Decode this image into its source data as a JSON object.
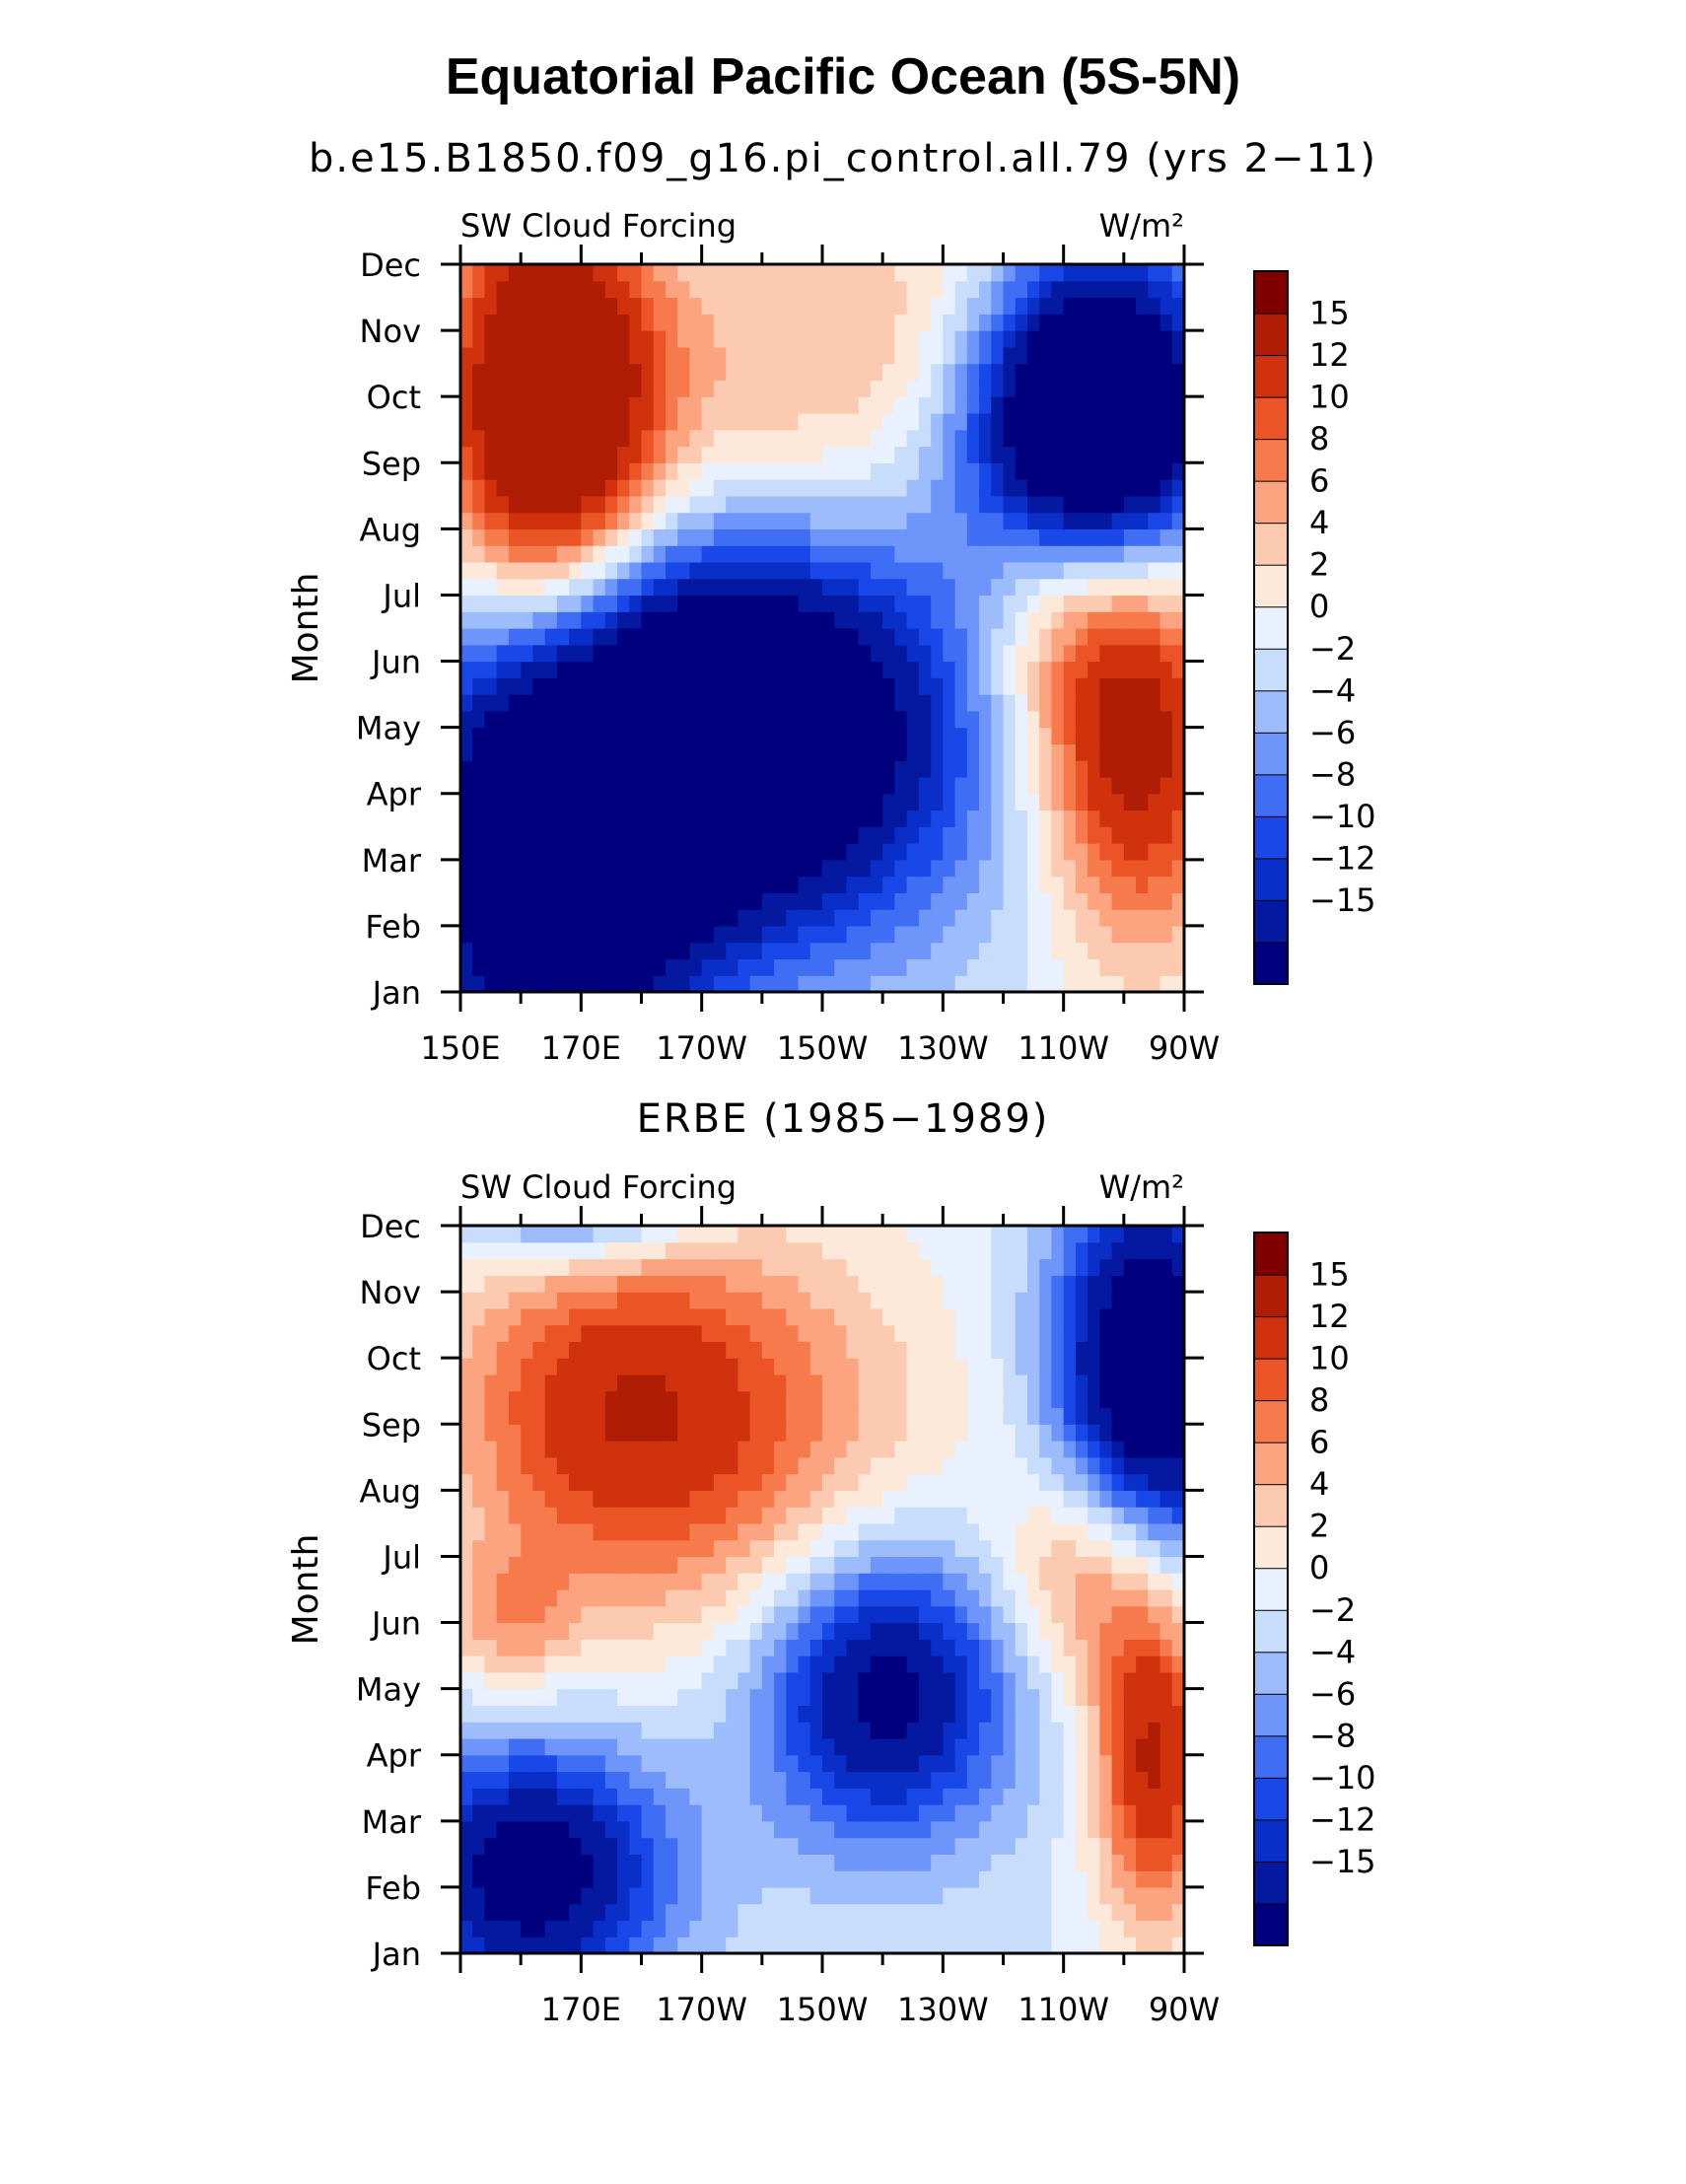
{
  "title": "Equatorial Pacific Ocean (5S-5N)",
  "chart_data": [
    {
      "type": "heatmap",
      "title": "b.e15.B1850.f09_g16.pi_control.all.79 (yrs 2−11)",
      "left_label": "SW Cloud Forcing",
      "units_label": "W/m²",
      "ylabel": "Month",
      "xlabel": "",
      "x_range": [
        150,
        270
      ],
      "x_tick_values": [
        150,
        170,
        190,
        210,
        230,
        250,
        270
      ],
      "x_ticks": [
        "150E",
        "170E",
        "170W",
        "150W",
        "130W",
        "110W",
        "90W"
      ],
      "y_ticks": [
        "Jan",
        "Feb",
        "Mar",
        "Apr",
        "May",
        "Jun",
        "Jul",
        "Aug",
        "Sep",
        "Oct",
        "Nov",
        "Dec"
      ],
      "colorbar_labels": [
        "15",
        "12",
        "10",
        "8",
        "6",
        "4",
        "2",
        "0",
        "−2",
        "−4",
        "−6",
        "−8",
        "−10",
        "−12",
        "−15"
      ],
      "field_features": [
        {
          "lon": 165,
          "month": 8.8,
          "amp": 26,
          "sx": 12,
          "sy": 2.2
        },
        {
          "lon": 200,
          "month": 8.2,
          "amp": 6,
          "sx": 22,
          "sy": 2.0
        },
        {
          "lon": 195,
          "month": 4.0,
          "amp": -28,
          "sx": 26,
          "sy": 2.2
        },
        {
          "lon": 165,
          "month": 1.5,
          "amp": -20,
          "sx": 16,
          "sy": 2.3
        },
        {
          "lon": 255,
          "month": 8.6,
          "amp": -32,
          "sx": 14,
          "sy": 1.8
        },
        {
          "lon": 262,
          "month": 4.0,
          "amp": 18,
          "sx": 11,
          "sy": 2.3
        },
        {
          "lon": 248,
          "month": 6.0,
          "amp": 8,
          "sx": 10,
          "sy": 1.6
        },
        {
          "lon": 230,
          "month": 10.5,
          "amp": 4,
          "sx": 25,
          "sy": 1.5
        }
      ]
    },
    {
      "type": "heatmap",
      "title": "ERBE (1985−1989)",
      "left_label": "SW Cloud Forcing",
      "units_label": "W/m²",
      "ylabel": "Month",
      "xlabel": "",
      "x_range": [
        150,
        270
      ],
      "x_tick_values": [
        170,
        190,
        210,
        230,
        250,
        270
      ],
      "x_ticks": [
        "170E",
        "170W",
        "150W",
        "130W",
        "110W",
        "90W"
      ],
      "y_ticks": [
        "Jan",
        "Feb",
        "Mar",
        "Apr",
        "May",
        "Jun",
        "Jul",
        "Aug",
        "Sep",
        "Oct",
        "Nov",
        "Dec"
      ],
      "colorbar_labels": [
        "15",
        "12",
        "10",
        "8",
        "6",
        "4",
        "2",
        "0",
        "−2",
        "−4",
        "−6",
        "−8",
        "−10",
        "−12",
        "−15"
      ],
      "field_features": [
        {
          "lon": 175,
          "month": 8.3,
          "amp": 13,
          "sx": 20,
          "sy": 2.0
        },
        {
          "lon": 205,
          "month": 7.5,
          "amp": 6,
          "sx": 22,
          "sy": 2.5
        },
        {
          "lon": 220,
          "month": 4.0,
          "amp": -18,
          "sx": 15,
          "sy": 1.6
        },
        {
          "lon": 162,
          "month": 1.2,
          "amp": -18,
          "sx": 16,
          "sy": 1.4
        },
        {
          "lon": 170,
          "month": 11.9,
          "amp": -16,
          "sx": 14,
          "sy": 0.9
        },
        {
          "lon": 264,
          "month": 8.6,
          "amp": -22,
          "sx": 11,
          "sy": 2.2
        },
        {
          "lon": 265,
          "month": 3.0,
          "amp": 16,
          "sx": 7,
          "sy": 1.8
        },
        {
          "lon": 255,
          "month": 5.8,
          "amp": 11,
          "sx": 10,
          "sy": 1.3
        },
        {
          "lon": 158,
          "month": 5.0,
          "amp": 6,
          "sx": 8,
          "sy": 0.8
        }
      ]
    }
  ]
}
